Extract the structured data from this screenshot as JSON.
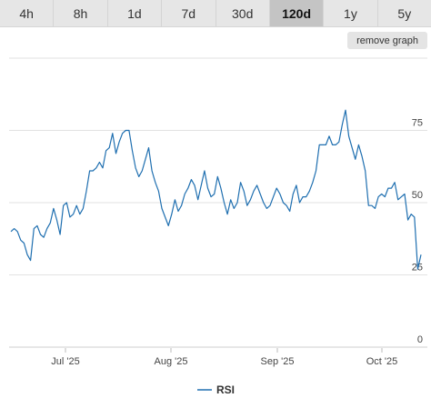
{
  "range_tabs": [
    {
      "label": "4h",
      "active": false
    },
    {
      "label": "8h",
      "active": false
    },
    {
      "label": "1d",
      "active": false
    },
    {
      "label": "7d",
      "active": false
    },
    {
      "label": "30d",
      "active": false
    },
    {
      "label": "120d",
      "active": true
    },
    {
      "label": "1y",
      "active": false
    },
    {
      "label": "5y",
      "active": false
    }
  ],
  "remove_graph_label": "remove graph",
  "colors": {
    "line": "#1f6fb0",
    "grid": "#e2e2e2",
    "axis_text": "#444444",
    "tab_bar": "#e6e6e6",
    "tab_active": "#c4c4c4"
  },
  "chart_data": {
    "type": "line",
    "title": "",
    "xlabel": "",
    "ylabel": "",
    "ylim": [
      0,
      100
    ],
    "y_ticks": [
      0,
      25,
      50,
      75
    ],
    "x_ticks": [
      "Jul '25",
      "Aug '25",
      "Sep '25",
      "Oct '25"
    ],
    "legend": [
      "RSI"
    ],
    "legend_position": "bottom-center",
    "grid": true,
    "series": [
      {
        "name": "RSI",
        "values": [
          40,
          41,
          40,
          37,
          36,
          32,
          30,
          41,
          42,
          39,
          38,
          41,
          43,
          48,
          44,
          39,
          49,
          50,
          45,
          46,
          49,
          46,
          48,
          54,
          61,
          61,
          62,
          64,
          62,
          68,
          69,
          74,
          67,
          71,
          74,
          75,
          75,
          68,
          62,
          59,
          61,
          65,
          69,
          61,
          57,
          54,
          48,
          45,
          42,
          46,
          51,
          47,
          49,
          53,
          55,
          58,
          56,
          51,
          56,
          61,
          55,
          52,
          53,
          59,
          55,
          50,
          46,
          51,
          48,
          50,
          57,
          54,
          49,
          51,
          54,
          56,
          53,
          50,
          48,
          49,
          52,
          55,
          53,
          50,
          49,
          47,
          53,
          56,
          50,
          52,
          52,
          54,
          57,
          61,
          70,
          70,
          70,
          73,
          70,
          70,
          71,
          77,
          82,
          73,
          69,
          65,
          70,
          66,
          61,
          49,
          49,
          48,
          52,
          53,
          52,
          55,
          55,
          57,
          51,
          52,
          53,
          44,
          46,
          45,
          27,
          32
        ]
      }
    ]
  }
}
